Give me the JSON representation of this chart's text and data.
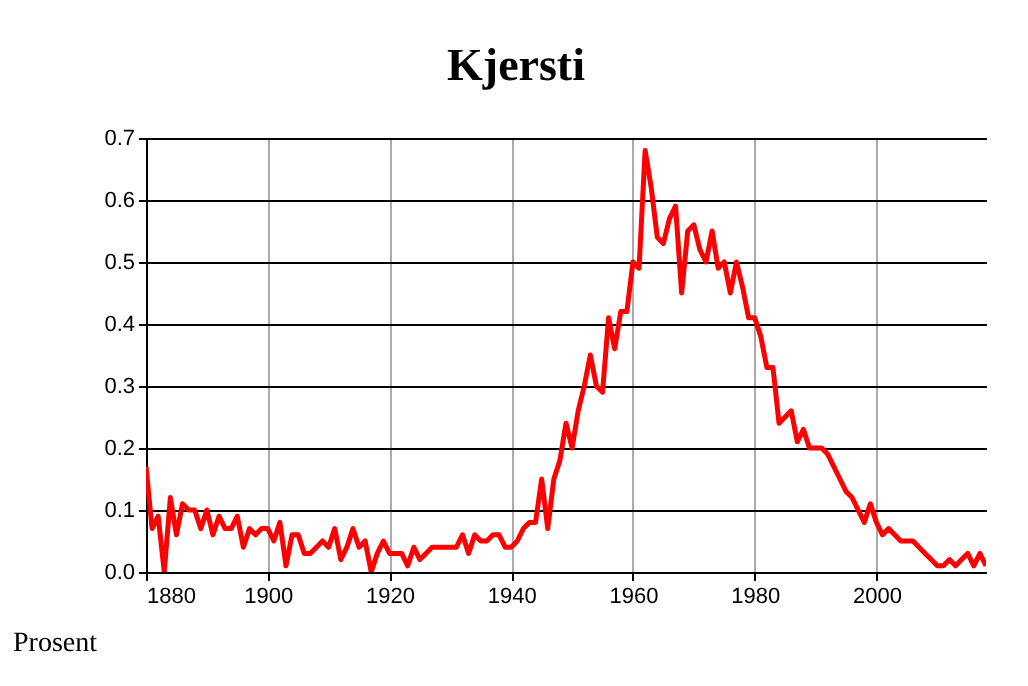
{
  "chart_data": {
    "type": "line",
    "title": "Kjersti",
    "ylabel": "Prosent",
    "x": [
      1880,
      1881,
      1882,
      1883,
      1884,
      1885,
      1886,
      1887,
      1888,
      1889,
      1890,
      1891,
      1892,
      1893,
      1894,
      1895,
      1896,
      1897,
      1898,
      1899,
      1900,
      1901,
      1902,
      1903,
      1904,
      1905,
      1906,
      1907,
      1908,
      1909,
      1910,
      1911,
      1912,
      1913,
      1914,
      1915,
      1916,
      1917,
      1918,
      1919,
      1920,
      1921,
      1922,
      1923,
      1924,
      1925,
      1926,
      1927,
      1928,
      1929,
      1930,
      1931,
      1932,
      1933,
      1934,
      1935,
      1936,
      1937,
      1938,
      1939,
      1940,
      1941,
      1942,
      1943,
      1944,
      1945,
      1946,
      1947,
      1948,
      1949,
      1950,
      1951,
      1952,
      1953,
      1954,
      1955,
      1956,
      1957,
      1958,
      1959,
      1960,
      1961,
      1962,
      1963,
      1964,
      1965,
      1966,
      1967,
      1968,
      1969,
      1970,
      1971,
      1972,
      1973,
      1974,
      1975,
      1976,
      1977,
      1978,
      1979,
      1980,
      1981,
      1982,
      1983,
      1984,
      1985,
      1986,
      1987,
      1988,
      1989,
      1990,
      1991,
      1992,
      1993,
      1994,
      1995,
      1996,
      1997,
      1998,
      1999,
      2000,
      2001,
      2002,
      2003,
      2004,
      2005,
      2006,
      2007,
      2008,
      2009,
      2010,
      2011,
      2012,
      2013,
      2014,
      2015,
      2016,
      2017,
      2018
    ],
    "series": [
      {
        "color": "#ff0000",
        "values": [
          0.17,
          0.07,
          0.09,
          0.0,
          0.12,
          0.06,
          0.11,
          0.1,
          0.1,
          0.07,
          0.1,
          0.06,
          0.09,
          0.07,
          0.07,
          0.09,
          0.04,
          0.07,
          0.06,
          0.07,
          0.07,
          0.05,
          0.08,
          0.01,
          0.06,
          0.06,
          0.03,
          0.03,
          0.04,
          0.05,
          0.04,
          0.07,
          0.02,
          0.04,
          0.07,
          0.04,
          0.05,
          0.0,
          0.03,
          0.05,
          0.03,
          0.03,
          0.03,
          0.01,
          0.04,
          0.02,
          0.03,
          0.04,
          0.04,
          0.04,
          0.04,
          0.04,
          0.06,
          0.03,
          0.06,
          0.05,
          0.05,
          0.06,
          0.06,
          0.04,
          0.04,
          0.05,
          0.07,
          0.08,
          0.08,
          0.15,
          0.07,
          0.15,
          0.18,
          0.24,
          0.2,
          0.26,
          0.3,
          0.35,
          0.3,
          0.29,
          0.41,
          0.36,
          0.42,
          0.42,
          0.5,
          0.49,
          0.68,
          0.62,
          0.54,
          0.53,
          0.57,
          0.59,
          0.45,
          0.55,
          0.56,
          0.52,
          0.5,
          0.55,
          0.49,
          0.5,
          0.45,
          0.5,
          0.46,
          0.41,
          0.41,
          0.38,
          0.33,
          0.33,
          0.24,
          0.25,
          0.26,
          0.21,
          0.23,
          0.2,
          0.2,
          0.2,
          0.19,
          0.17,
          0.15,
          0.13,
          0.12,
          0.1,
          0.08,
          0.11,
          0.08,
          0.06,
          0.07,
          0.06,
          0.05,
          0.05,
          0.05,
          0.04,
          0.03,
          0.02,
          0.01,
          0.01,
          0.02,
          0.01,
          0.02,
          0.03,
          0.01,
          0.03,
          0.01
        ]
      }
    ],
    "xlim": [
      1880,
      2018
    ],
    "xticks": [
      1880,
      1900,
      1920,
      1940,
      1960,
      1980,
      2000
    ],
    "ylim": [
      0,
      0.7
    ],
    "yticks": [
      {
        "value": 0,
        "label": "0.0"
      },
      0.1,
      0.2,
      0.3,
      0.4,
      0.5,
      0.6,
      0.7
    ],
    "grid": true
  }
}
